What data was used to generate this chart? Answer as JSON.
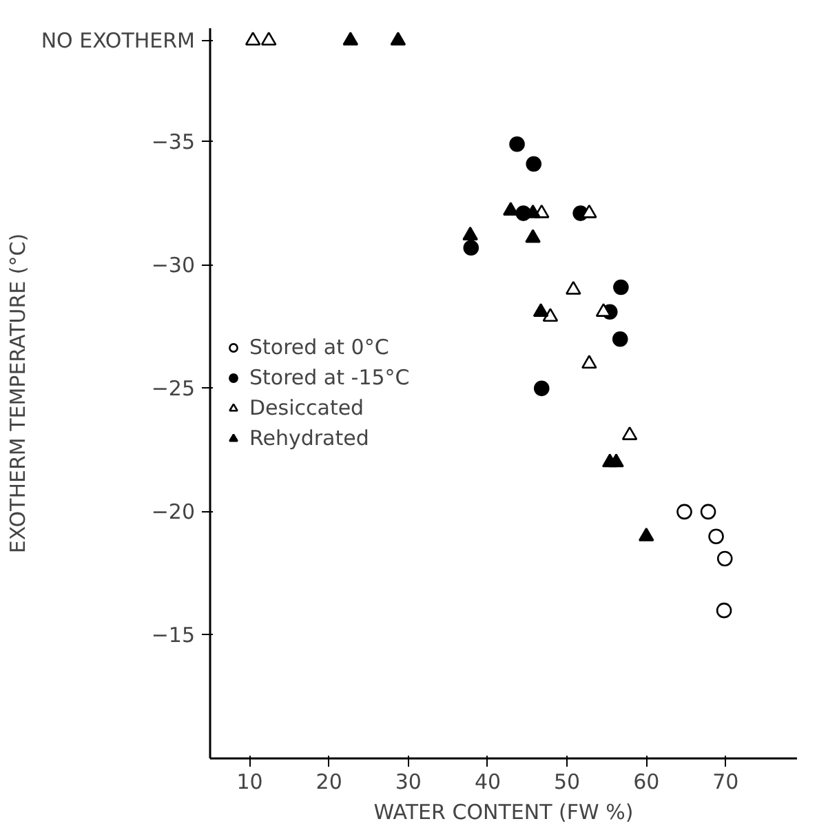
{
  "chart_data": {
    "type": "scatter",
    "xlabel": "WATER CONTENT (FW %)",
    "ylabel": "EXOTHERM TEMPERATURE (°C)",
    "xlim": [
      5,
      79
    ],
    "ylim": [
      -10,
      -39.6
    ],
    "xticks": [
      10,
      20,
      30,
      40,
      50,
      60,
      70
    ],
    "yticks": [
      -15,
      -20,
      -25,
      -30,
      -35,
      {
        "value": -39.1,
        "label": "NO EXOTHERM"
      }
    ],
    "grid": false,
    "legend": "left",
    "series": [
      {
        "name": "Stored at 0°C",
        "color": "#ffffff",
        "marker": "circle",
        "x": [
          64.8,
          67.8,
          68.8,
          69.9,
          69.8
        ],
        "values": [
          -20.0,
          -20.0,
          -19.0,
          -18.1,
          -16.0
        ]
      },
      {
        "name": "Stored at -15°C",
        "color": "#000000",
        "marker": "circle",
        "x": [
          43.7,
          45.8,
          44.5,
          51.7,
          37.9,
          56.8,
          55.4,
          56.7,
          46.8
        ],
        "values": [
          -34.9,
          -34.1,
          -32.1,
          -32.1,
          -30.7,
          -29.1,
          -28.1,
          -27.0,
          -25.0
        ]
      },
      {
        "name": "Desiccated",
        "color": "#ffffff",
        "marker": "triangle",
        "x": [
          10.4,
          12.4,
          46.8,
          52.8,
          50.8,
          47.9,
          54.6,
          52.8,
          57.9
        ],
        "values": [
          -39.1,
          -39.1,
          -32.1,
          -32.1,
          -29.0,
          -27.9,
          -28.1,
          -26.0,
          -23.1
        ]
      },
      {
        "name": "Rehydrated",
        "color": "#000000",
        "marker": "triangle",
        "x": [
          22.7,
          28.7,
          42.9,
          45.7,
          37.8,
          45.7,
          46.7,
          55.4,
          56.2,
          60.0
        ],
        "values": [
          -39.1,
          -39.1,
          -32.2,
          -32.1,
          -31.2,
          -31.1,
          -28.1,
          -22.0,
          -22.0,
          -19.0
        ]
      }
    ]
  }
}
